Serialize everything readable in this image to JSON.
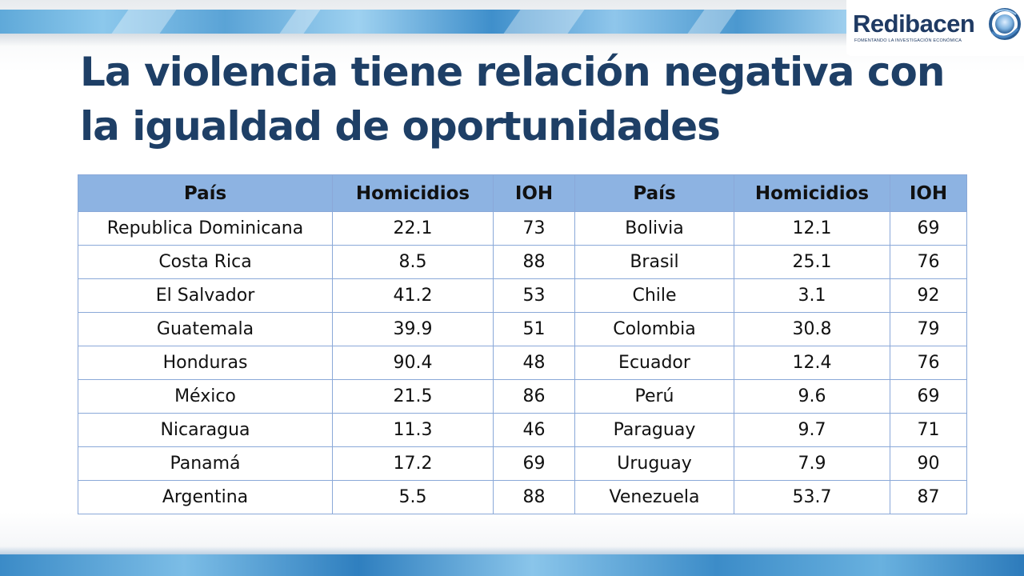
{
  "logo": {
    "name": "Redibacen",
    "tagline": "FOMENTANDO LA INVESTIGACIÓN ECONÓMICA"
  },
  "title": {
    "line1": "La violencia tiene relación negativa con",
    "line2": "la igualdad de oportunidades"
  },
  "table": {
    "headers": [
      "País",
      "Homicidios",
      "IOH",
      "País",
      "Homicidios",
      "IOH"
    ],
    "rows": [
      [
        "Republica Dominicana",
        "22.1",
        "73",
        "Bolivia",
        "12.1",
        "69"
      ],
      [
        "Costa Rica",
        "8.5",
        "88",
        "Brasil",
        "25.1",
        "76"
      ],
      [
        "El Salvador",
        "41.2",
        "53",
        "Chile",
        "3.1",
        "92"
      ],
      [
        "Guatemala",
        "39.9",
        "51",
        "Colombia",
        "30.8",
        "79"
      ],
      [
        "Honduras",
        "90.4",
        "48",
        "Ecuador",
        "12.4",
        "76"
      ],
      [
        "México",
        "21.5",
        "86",
        "Perú",
        "9.6",
        "69"
      ],
      [
        "Nicaragua",
        "11.3",
        "46",
        "Paraguay",
        "9.7",
        "71"
      ],
      [
        "Panamá",
        "17.2",
        "69",
        "Uruguay",
        "7.9",
        "90"
      ],
      [
        "Argentina",
        "5.5",
        "88",
        "Venezuela",
        "53.7",
        "87"
      ]
    ]
  },
  "colors": {
    "title": "#1e3f66",
    "header_fill": "#8db3e2",
    "grid_line": "#8aa8d8",
    "logo_text": "#1f3a63"
  }
}
